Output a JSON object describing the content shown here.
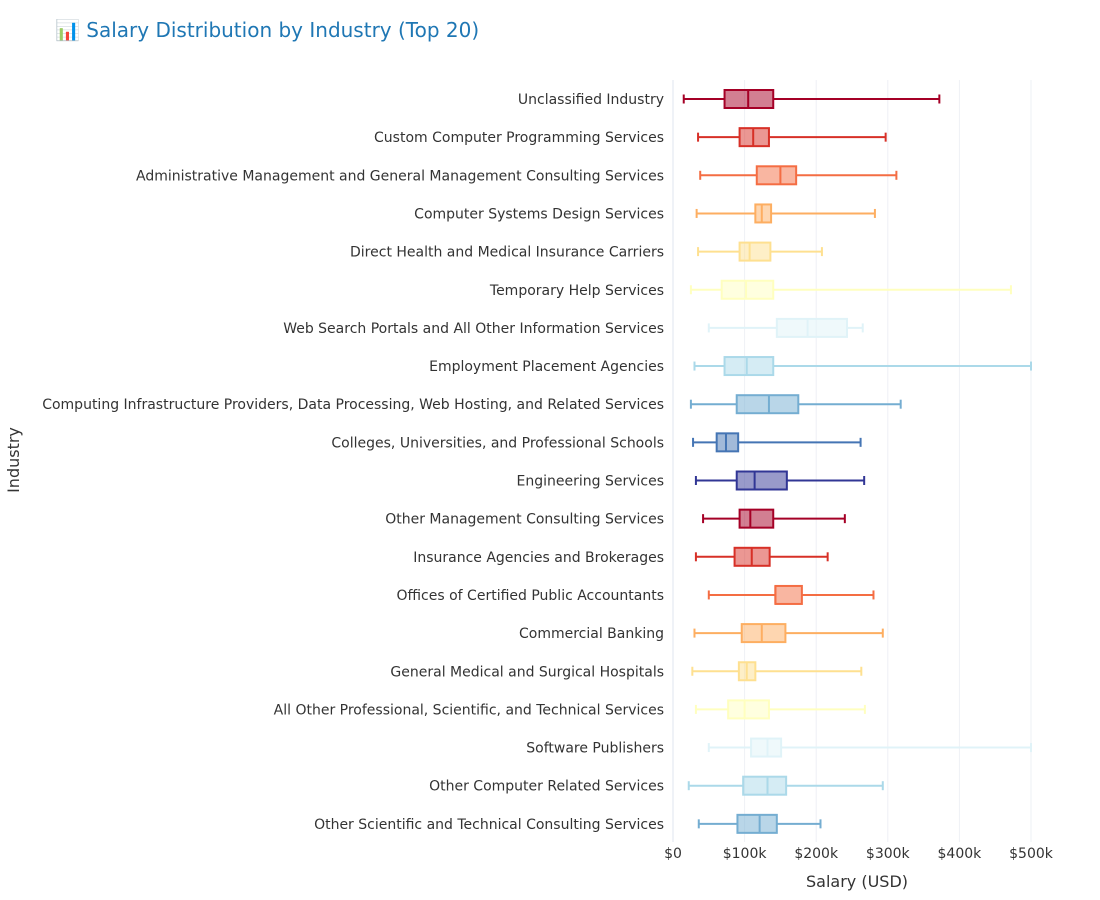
{
  "title": "📊 Salary Distribution by Industry (Top 20)",
  "colors": {
    "title": "#1f77b4",
    "grid": "#eef0f5",
    "text": "#333333"
  },
  "chart_data": {
    "type": "box",
    "title": "📊 Salary Distribution by Industry (Top 20)",
    "xlabel": "Salary (USD)",
    "ylabel": "Industry",
    "xlim": [
      0,
      500000
    ],
    "x_ticks": [
      0,
      100000,
      200000,
      300000,
      400000,
      500000
    ],
    "x_tick_labels": [
      "$0",
      "$100k",
      "$200k",
      "$300k",
      "$400k",
      "$500k"
    ],
    "grid": true,
    "orientation": "horizontal",
    "categories": [
      "Unclassified Industry",
      "Custom Computer Programming Services",
      "Administrative Management and General Management Consulting Services",
      "Computer Systems Design Services",
      "Direct Health and Medical Insurance Carriers",
      "Temporary Help Services",
      "Web Search Portals and All Other Information Services",
      "Employment Placement Agencies",
      "Computing Infrastructure Providers, Data Processing, Web Hosting, and Related Services",
      "Colleges, Universities, and Professional Schools",
      "Engineering Services",
      "Other Management Consulting Services",
      "Insurance Agencies and Brokerages",
      "Offices of Certified Public Accountants",
      "Commercial Banking",
      "General Medical and Surgical Hospitals",
      "All Other Professional, Scientific, and Technical Services",
      "Software Publishers",
      "Other Computer Related Services",
      "Other Scientific and Technical Consulting Services"
    ],
    "boxes": [
      {
        "min": 15000,
        "q1": 72000,
        "median": 105000,
        "q3": 140000,
        "max": 372000,
        "color": "#a50026"
      },
      {
        "min": 35000,
        "q1": 93000,
        "median": 112000,
        "q3": 134000,
        "max": 297000,
        "color": "#d73027"
      },
      {
        "min": 38000,
        "q1": 117000,
        "median": 150000,
        "q3": 172000,
        "max": 312000,
        "color": "#f46d43"
      },
      {
        "min": 33000,
        "q1": 115000,
        "median": 124000,
        "q3": 137000,
        "max": 282000,
        "color": "#fdae61"
      },
      {
        "min": 35000,
        "q1": 93000,
        "median": 107000,
        "q3": 136000,
        "max": 208000,
        "color": "#fee090"
      },
      {
        "min": 25000,
        "q1": 68000,
        "median": 102000,
        "q3": 140000,
        "max": 472000,
        "color": "#ffffbf"
      },
      {
        "min": 50000,
        "q1": 145000,
        "median": 188000,
        "q3": 243000,
        "max": 265000,
        "color": "#e0f3f8"
      },
      {
        "min": 30000,
        "q1": 72000,
        "median": 103000,
        "q3": 140000,
        "max": 500000,
        "color": "#abd9e9"
      },
      {
        "min": 25000,
        "q1": 89000,
        "median": 134000,
        "q3": 175000,
        "max": 318000,
        "color": "#74add1"
      },
      {
        "min": 28000,
        "q1": 61000,
        "median": 74000,
        "q3": 91000,
        "max": 262000,
        "color": "#4575b4"
      },
      {
        "min": 32000,
        "q1": 89000,
        "median": 114000,
        "q3": 159000,
        "max": 267000,
        "color": "#313695"
      },
      {
        "min": 42000,
        "q1": 93000,
        "median": 108000,
        "q3": 140000,
        "max": 240000,
        "color": "#a50026"
      },
      {
        "min": 32000,
        "q1": 86000,
        "median": 110000,
        "q3": 135000,
        "max": 216000,
        "color": "#d73027"
      },
      {
        "min": 50000,
        "q1": 143000,
        "median": 143000,
        "q3": 180000,
        "max": 280000,
        "color": "#f46d43"
      },
      {
        "min": 30000,
        "q1": 96000,
        "median": 124000,
        "q3": 157000,
        "max": 293000,
        "color": "#fdae61"
      },
      {
        "min": 27000,
        "q1": 92000,
        "median": 103000,
        "q3": 115000,
        "max": 263000,
        "color": "#fee090"
      },
      {
        "min": 32000,
        "q1": 77000,
        "median": 100000,
        "q3": 134000,
        "max": 268000,
        "color": "#ffffbf"
      },
      {
        "min": 50000,
        "q1": 109000,
        "median": 132000,
        "q3": 151000,
        "max": 500000,
        "color": "#e0f3f8"
      },
      {
        "min": 22000,
        "q1": 98000,
        "median": 132000,
        "q3": 158000,
        "max": 293000,
        "color": "#abd9e9"
      },
      {
        "min": 36000,
        "q1": 90000,
        "median": 121000,
        "q3": 145000,
        "max": 206000,
        "color": "#74add1"
      }
    ]
  }
}
